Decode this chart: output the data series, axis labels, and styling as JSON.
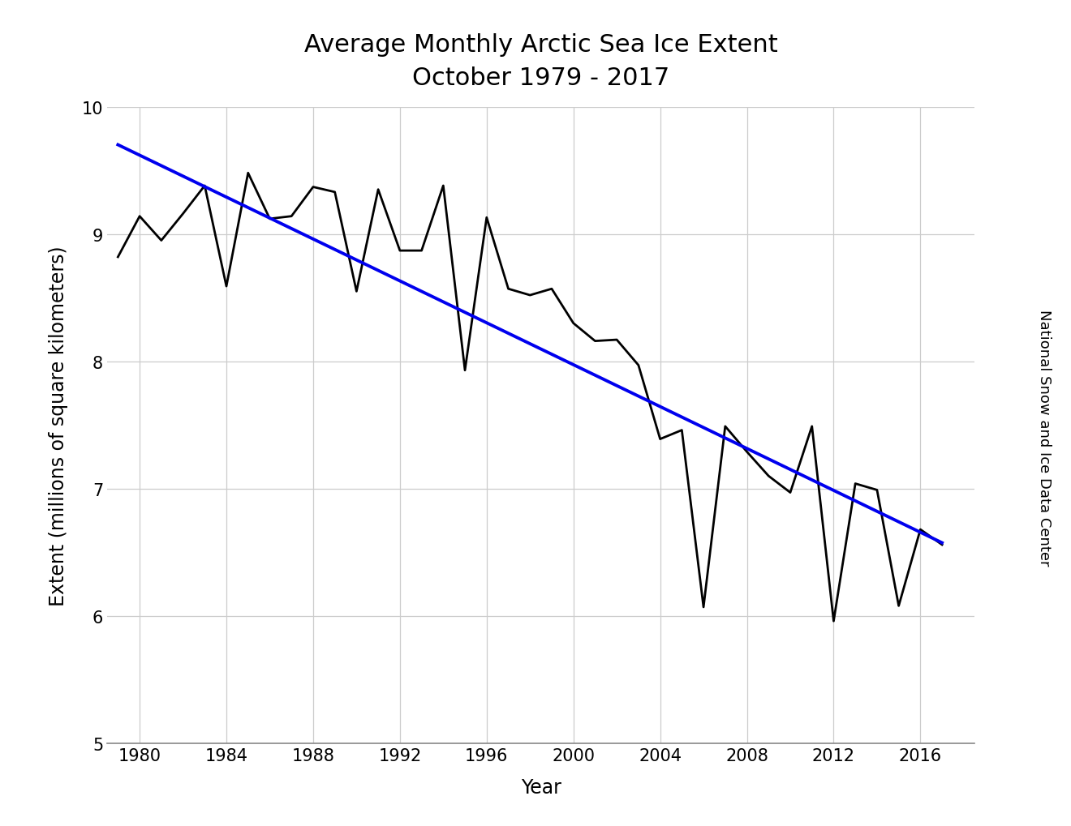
{
  "title_line1": "Average Monthly Arctic Sea Ice Extent",
  "title_line2": "October 1979 - 2017",
  "xlabel": "Year",
  "ylabel": "Extent (millions of square kilometers)",
  "watermark": "National Snow and Ice Data Center",
  "years": [
    1979,
    1980,
    1981,
    1982,
    1983,
    1984,
    1985,
    1986,
    1987,
    1988,
    1989,
    1990,
    1991,
    1992,
    1993,
    1994,
    1995,
    1996,
    1997,
    1998,
    1999,
    2000,
    2001,
    2002,
    2003,
    2004,
    2005,
    2006,
    2007,
    2008,
    2009,
    2010,
    2011,
    2012,
    2013,
    2014,
    2015,
    2016,
    2017
  ],
  "values": [
    8.82,
    9.14,
    8.95,
    9.16,
    9.38,
    8.59,
    9.48,
    9.12,
    9.14,
    9.37,
    9.33,
    8.55,
    9.35,
    8.87,
    8.87,
    9.38,
    7.93,
    9.13,
    8.57,
    8.52,
    8.57,
    8.3,
    8.16,
    8.17,
    7.97,
    7.39,
    7.46,
    6.07,
    7.49,
    7.29,
    7.1,
    6.97,
    7.49,
    5.96,
    7.04,
    6.99,
    6.08,
    6.68,
    6.56
  ],
  "xlim": [
    1978.5,
    2018.5
  ],
  "ylim": [
    5.0,
    10.0
  ],
  "yticks": [
    5,
    6,
    7,
    8,
    9,
    10
  ],
  "xticks": [
    1980,
    1984,
    1988,
    1992,
    1996,
    2000,
    2004,
    2008,
    2012,
    2016
  ],
  "line_color": "#000000",
  "trend_color": "#0000ee",
  "background_color": "#ffffff",
  "grid_color": "#cccccc",
  "title_fontsize": 22,
  "label_fontsize": 17,
  "tick_fontsize": 15,
  "watermark_fontsize": 13
}
